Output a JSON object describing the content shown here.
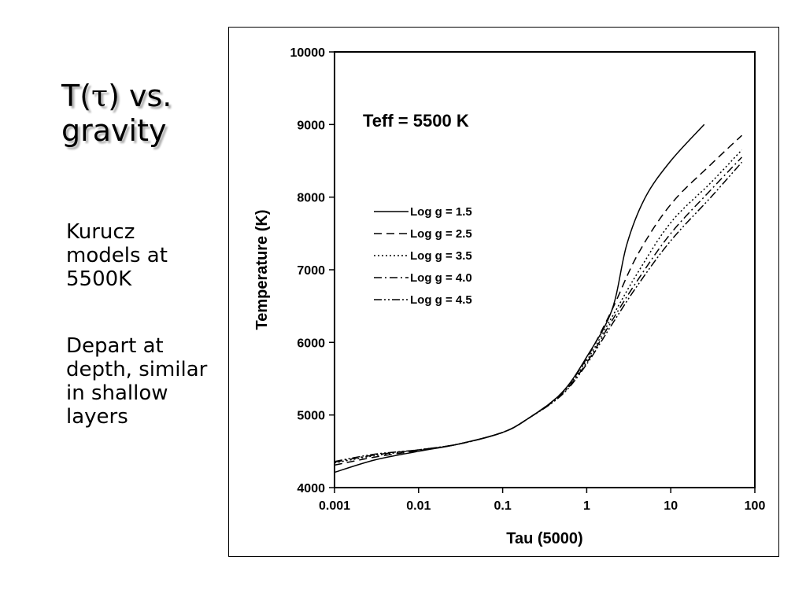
{
  "slide": {
    "title_prefix": "T(",
    "title_tau": "τ",
    "title_suffix": ") vs.",
    "title_line2": "gravity",
    "bullets": [
      "Kurucz models at 5500K",
      "Depart at depth, similar in shallow layers"
    ]
  },
  "chart_data": {
    "type": "line",
    "title": "",
    "annotation": "Teff = 5500 K",
    "xlabel": "Tau (5000)",
    "ylabel": "Temperature (K)",
    "xscale": "log",
    "xlim": [
      0.001,
      100
    ],
    "ylim": [
      4000,
      10000
    ],
    "xticks": [
      0.001,
      0.01,
      0.1,
      1,
      10,
      100
    ],
    "xtick_labels": [
      "0.001",
      "0.01",
      "0.1",
      "1",
      "10",
      "100"
    ],
    "yticks": [
      4000,
      5000,
      6000,
      7000,
      8000,
      9000,
      10000
    ],
    "ytick_labels": [
      "4000",
      "5000",
      "6000",
      "7000",
      "8000",
      "9000",
      "10000"
    ],
    "grid": false,
    "legend_position": "middle-left",
    "series": [
      {
        "name": "Log g = 1.5",
        "dash": "solid",
        "x": [
          0.001,
          0.003,
          0.01,
          0.03,
          0.1,
          0.2,
          0.5,
          1,
          2,
          3,
          5,
          10,
          25
        ],
        "y": [
          4210,
          4380,
          4500,
          4600,
          4760,
          4950,
          5300,
          5800,
          6450,
          7350,
          8000,
          8500,
          9000
        ]
      },
      {
        "name": "Log g = 2.5",
        "dash": "dash",
        "x": [
          0.001,
          0.003,
          0.01,
          0.03,
          0.1,
          0.2,
          0.5,
          1,
          2,
          4,
          10,
          30,
          70
        ],
        "y": [
          4310,
          4420,
          4510,
          4600,
          4760,
          4950,
          5300,
          5780,
          6450,
          7200,
          7900,
          8450,
          8850
        ]
      },
      {
        "name": "Log g = 3.5",
        "dash": "dot",
        "x": [
          0.001,
          0.003,
          0.01,
          0.03,
          0.1,
          0.2,
          0.5,
          1,
          2,
          4,
          10,
          30,
          70
        ],
        "y": [
          4340,
          4440,
          4520,
          4600,
          4760,
          4950,
          5290,
          5750,
          6350,
          6950,
          7650,
          8200,
          8650
        ]
      },
      {
        "name": "Log g = 4.0",
        "dash": "dashdot",
        "x": [
          0.001,
          0.003,
          0.01,
          0.03,
          0.1,
          0.2,
          0.5,
          1,
          2,
          4,
          10,
          30,
          70
        ],
        "y": [
          4350,
          4450,
          4520,
          4600,
          4760,
          4950,
          5280,
          5720,
          6300,
          6850,
          7500,
          8100,
          8550
        ]
      },
      {
        "name": "Log g = 4.5",
        "dash": "dashdotdot",
        "x": [
          0.001,
          0.003,
          0.01,
          0.03,
          0.1,
          0.2,
          0.5,
          1,
          2,
          4,
          10,
          30,
          70
        ],
        "y": [
          4360,
          4460,
          4520,
          4600,
          4760,
          4950,
          5270,
          5700,
          6250,
          6780,
          7400,
          8000,
          8480
        ]
      }
    ]
  }
}
